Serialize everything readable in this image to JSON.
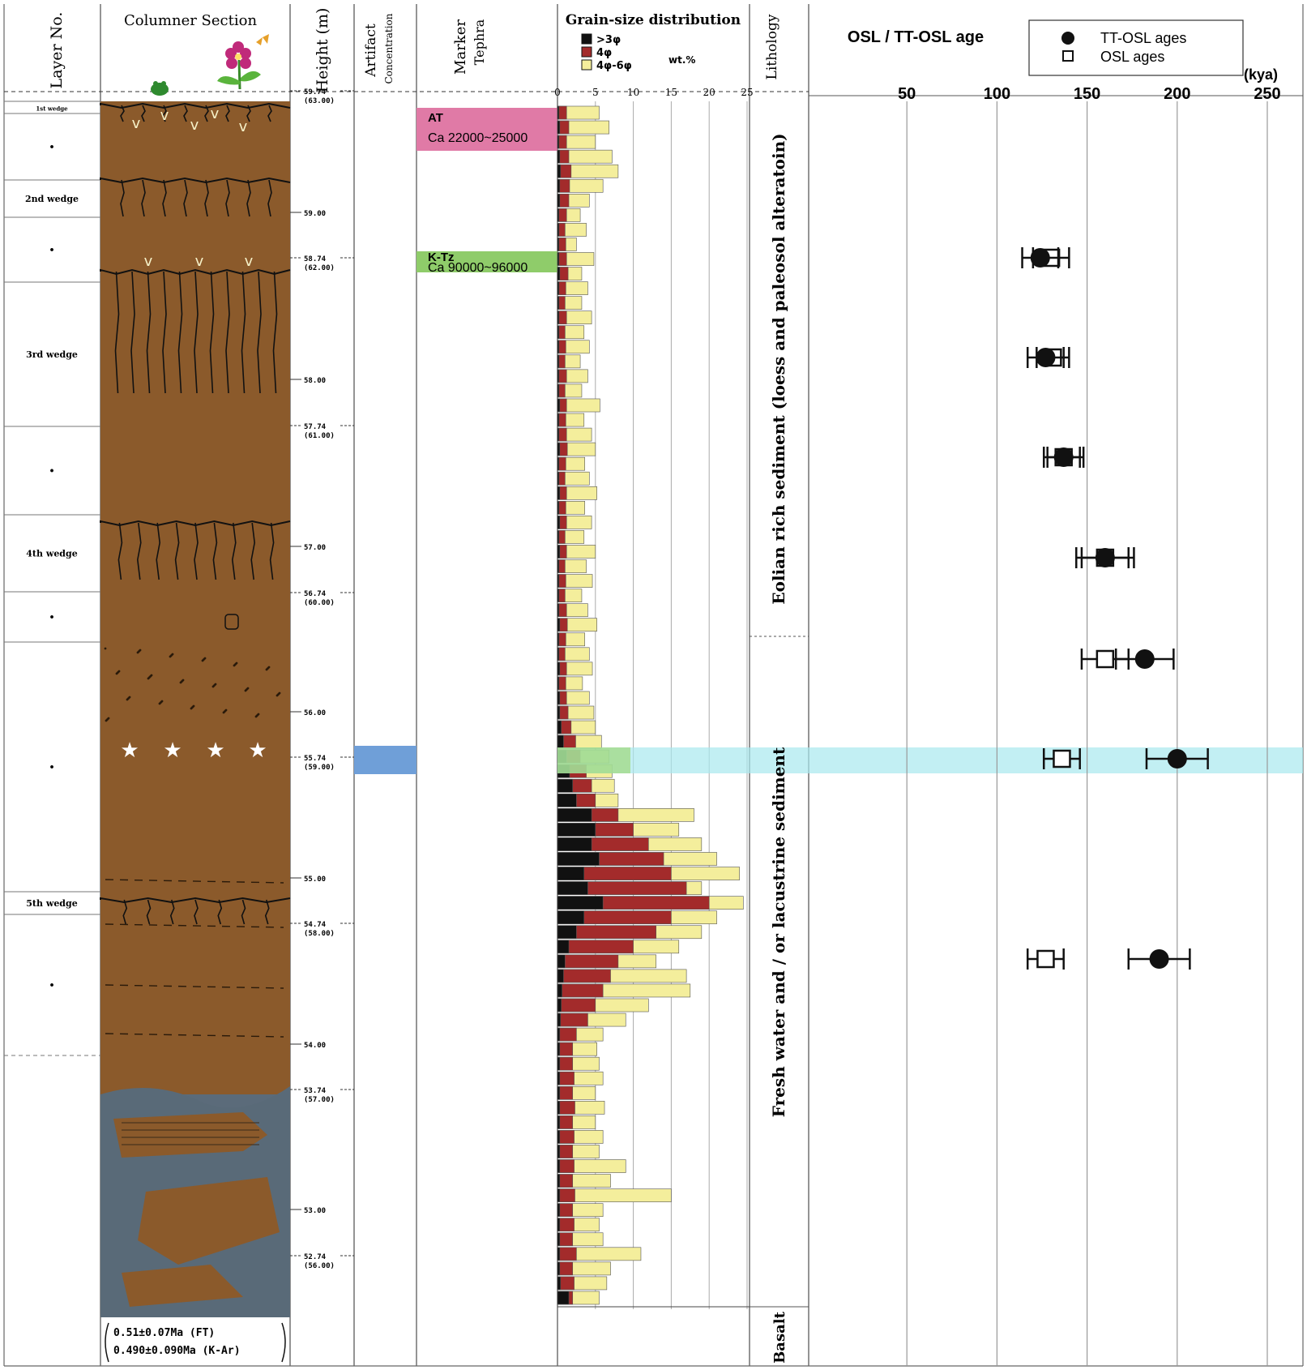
{
  "headers": {
    "layer_no": "Layer No.",
    "columnar_section": "Columner Section",
    "height": "Height (m)",
    "artifact_line1": "Artifact",
    "artifact_line2": "Concentration",
    "marker_line1": "Marker",
    "marker_line2": "Tephra",
    "grain_size": "Grain-size distribution",
    "lithology": "Lithology",
    "osl": "OSL / TT-OSL age"
  },
  "layers": [
    {
      "label": "1st wedge"
    },
    {
      "label": "•"
    },
    {
      "label": "2nd wedge"
    },
    {
      "label": "•"
    },
    {
      "label": "3rd wedge"
    },
    {
      "label": "•"
    },
    {
      "label": "4th wedge"
    },
    {
      "label": "•"
    },
    {
      "label": "•"
    },
    {
      "label": "5th wedge"
    },
    {
      "label": "•"
    }
  ],
  "heights": [
    {
      "main": "59.74",
      "sub": "(63.00)"
    },
    {
      "main": "59.00",
      "sub": ""
    },
    {
      "main": "58.74",
      "sub": "(62.00)"
    },
    {
      "main": "58.00",
      "sub": ""
    },
    {
      "main": "57.74",
      "sub": "(61.00)"
    },
    {
      "main": "57.00",
      "sub": ""
    },
    {
      "main": "56.74",
      "sub": "(60.00)"
    },
    {
      "main": "56.00",
      "sub": ""
    },
    {
      "main": "55.74",
      "sub": "(59.00)"
    },
    {
      "main": "55.00",
      "sub": ""
    },
    {
      "main": "54.74",
      "sub": "(58.00)"
    },
    {
      "main": "54.00",
      "sub": ""
    },
    {
      "main": "53.74",
      "sub": "(57.00)"
    },
    {
      "main": "53.00",
      "sub": ""
    },
    {
      "main": "52.74",
      "sub": "(56.00)"
    }
  ],
  "tephra": [
    {
      "name": "AT",
      "age": "Ca 22000~25000",
      "color": "#e07aa6"
    },
    {
      "name": "K-Tz",
      "age": "Ca 90000~96000",
      "color": "#8fcc6a"
    }
  ],
  "age_box": {
    "line1": "0.51±0.07Ma (FT)",
    "line2": "0.490±0.090Ma (K-Ar)"
  },
  "lithology": {
    "upper": "Eolian rich sediment (loess and paleosol alteratoin)",
    "middle": "Fresh water and / or lacustrine sediment",
    "lower": "Basalt"
  },
  "grain_chart": {
    "legend": [
      {
        "label": ">3φ",
        "color": "#111111"
      },
      {
        "label": "4φ",
        "color": "#a32b2b"
      },
      {
        "label": "4φ-6φ",
        "color": "#f4ee9c"
      }
    ],
    "unit": "wt.%",
    "ticks": [
      "0",
      "5",
      "10",
      "15",
      "20",
      "25"
    ],
    "samples": [
      [
        0.2,
        1.2,
        5.5
      ],
      [
        0.3,
        1.5,
        6.8
      ],
      [
        0.2,
        1.2,
        5.0
      ],
      [
        0.3,
        1.5,
        7.2
      ],
      [
        0.4,
        1.8,
        8.0
      ],
      [
        0.3,
        1.6,
        6.0
      ],
      [
        0.3,
        1.5,
        4.2
      ],
      [
        0.2,
        1.2,
        3.0
      ],
      [
        0.2,
        1.0,
        3.8
      ],
      [
        0.2,
        1.1,
        2.5
      ],
      [
        0.2,
        1.2,
        4.8
      ],
      [
        0.3,
        1.4,
        3.2
      ],
      [
        0.2,
        1.1,
        4.0
      ],
      [
        0.2,
        1.0,
        3.2
      ],
      [
        0.2,
        1.2,
        4.5
      ],
      [
        0.2,
        1.0,
        3.5
      ],
      [
        0.2,
        1.1,
        4.2
      ],
      [
        0.2,
        1.0,
        3.0
      ],
      [
        0.2,
        1.2,
        4.0
      ],
      [
        0.2,
        1.0,
        3.2
      ],
      [
        0.3,
        1.2,
        5.6
      ],
      [
        0.2,
        1.1,
        3.5
      ],
      [
        0.2,
        1.2,
        4.5
      ],
      [
        0.3,
        1.3,
        5.0
      ],
      [
        0.2,
        1.1,
        3.6
      ],
      [
        0.2,
        1.0,
        4.2
      ],
      [
        0.3,
        1.2,
        5.2
      ],
      [
        0.2,
        1.1,
        3.6
      ],
      [
        0.3,
        1.2,
        4.5
      ],
      [
        0.2,
        1.0,
        3.5
      ],
      [
        0.3,
        1.2,
        5.0
      ],
      [
        0.2,
        1.0,
        3.8
      ],
      [
        0.2,
        1.1,
        4.6
      ],
      [
        0.2,
        1.0,
        3.2
      ],
      [
        0.2,
        1.2,
        4.0
      ],
      [
        0.3,
        1.3,
        5.2
      ],
      [
        0.2,
        1.1,
        3.6
      ],
      [
        0.2,
        1.0,
        4.2
      ],
      [
        0.3,
        1.2,
        4.6
      ],
      [
        0.2,
        1.1,
        3.3
      ],
      [
        0.3,
        1.2,
        4.2
      ],
      [
        0.3,
        1.4,
        4.8
      ],
      [
        0.5,
        1.8,
        5.0
      ],
      [
        0.8,
        2.4,
        5.8
      ],
      [
        1.2,
        3.0,
        6.8
      ],
      [
        1.6,
        3.8,
        7.2
      ],
      [
        2.0,
        4.5,
        7.5
      ],
      [
        2.5,
        5.0,
        8.0
      ],
      [
        4.5,
        8.0,
        18.0
      ],
      [
        5.0,
        10.0,
        16.0
      ],
      [
        4.5,
        12.0,
        19.0
      ],
      [
        5.5,
        14.0,
        21.0
      ],
      [
        3.5,
        15.0,
        24.0
      ],
      [
        4.0,
        17.0,
        19.0
      ],
      [
        6.0,
        20.0,
        24.5
      ],
      [
        3.5,
        15.0,
        21.0
      ],
      [
        2.5,
        13.0,
        19.0
      ],
      [
        1.5,
        10.0,
        16.0
      ],
      [
        1.0,
        8.0,
        13.0
      ],
      [
        0.8,
        7.0,
        17.0
      ],
      [
        0.6,
        6.0,
        17.5
      ],
      [
        0.5,
        5.0,
        12.0
      ],
      [
        0.4,
        4.0,
        9.0
      ],
      [
        0.3,
        2.5,
        6.0
      ],
      [
        0.3,
        2.0,
        5.2
      ],
      [
        0.3,
        2.0,
        5.5
      ],
      [
        0.3,
        2.2,
        6.0
      ],
      [
        0.3,
        2.0,
        5.0
      ],
      [
        0.3,
        2.3,
        6.2
      ],
      [
        0.3,
        2.0,
        5.0
      ],
      [
        0.3,
        2.2,
        6.0
      ],
      [
        0.3,
        2.0,
        5.5
      ],
      [
        0.3,
        2.2,
        9.0
      ],
      [
        0.3,
        2.0,
        7.0
      ],
      [
        0.3,
        2.3,
        15.0
      ],
      [
        0.3,
        2.0,
        6.0
      ],
      [
        0.3,
        2.2,
        5.5
      ],
      [
        0.3,
        2.0,
        6.0
      ],
      [
        0.3,
        2.5,
        11.0
      ],
      [
        0.3,
        2.0,
        7.0
      ],
      [
        0.4,
        2.2,
        6.5
      ],
      [
        1.5,
        2.0,
        5.5
      ]
    ]
  },
  "osl_chart": {
    "unit": "(kya)",
    "ticks": [
      "50",
      "100",
      "150",
      "200",
      "250"
    ],
    "legend": [
      {
        "label": "TT-OSL ages",
        "marker": "filled-circle"
      },
      {
        "label": "OSL ages",
        "marker": "open-square"
      }
    ],
    "samples": [
      {
        "osl": 130,
        "osl_err": 10,
        "tt": 124,
        "tt_err": 10
      },
      {
        "osl": 131,
        "osl_err": 9,
        "tt": 127,
        "tt_err": 10
      },
      {
        "osl": 137,
        "osl_err": 9,
        "tt": 137,
        "tt_err": 11
      },
      {
        "osl": 160,
        "osl_err": 13,
        "tt": 160,
        "tt_err": 16
      },
      {
        "osl": 160,
        "osl_err": 13,
        "tt": 182,
        "tt_err": 16
      },
      {
        "osl": 136,
        "osl_err": 10,
        "tt": 200,
        "tt_err": 17
      },
      {
        "osl": 127,
        "osl_err": 10,
        "tt": 190,
        "tt_err": 17
      }
    ]
  }
}
